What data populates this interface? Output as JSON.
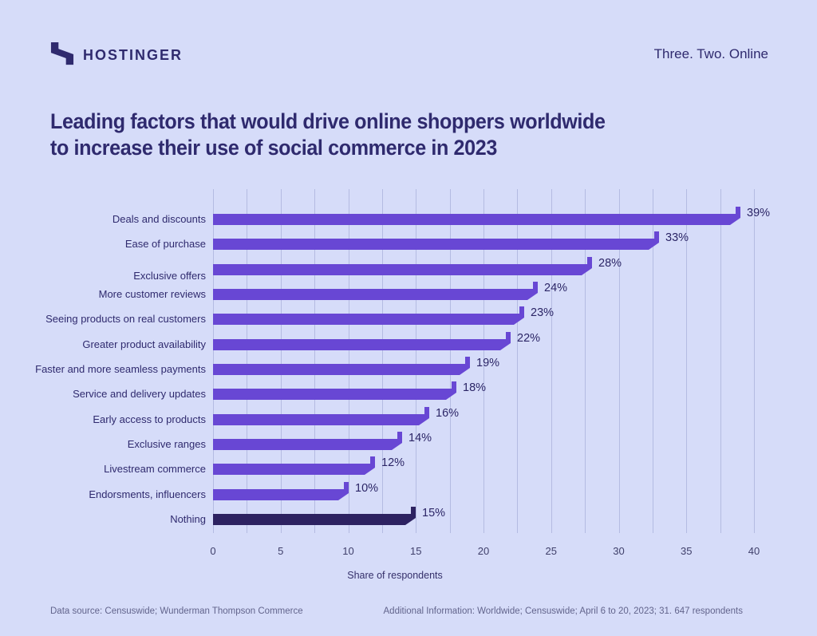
{
  "header": {
    "brand": "HOSTINGER",
    "tagline": "Three. Two. Online"
  },
  "title": {
    "line1": "Leading factors that would drive online shoppers worldwide",
    "line2": "to increase their use of social commerce in 2023"
  },
  "chart_data": {
    "type": "bar",
    "orientation": "horizontal",
    "title": "Leading factors that would drive online shoppers worldwide to increase their use of social commerce in 2023",
    "categories": [
      "Deals and discounts",
      "Ease of purchase",
      "Exclusive offers",
      "More customer reviews",
      "Seeing products on real customers",
      "Greater product availability",
      "Faster and more seamless payments",
      "Service and delivery updates",
      "Early access to products",
      "Exclusive ranges",
      "Livestream commerce",
      "Endorsments, influencers",
      "Nothing"
    ],
    "values": [
      39,
      33,
      28,
      24,
      23,
      22,
      19,
      18,
      16,
      14,
      12,
      10,
      15
    ],
    "value_labels": [
      "39%",
      "33%",
      "28%",
      "24%",
      "23%",
      "22%",
      "19%",
      "18%",
      "16%",
      "14%",
      "12%",
      "10%",
      "15%"
    ],
    "highlight_index": 12,
    "xlabel": "Share of respondents",
    "xlim": [
      0,
      40
    ],
    "xticks": [
      0,
      5,
      10,
      15,
      20,
      25,
      30,
      35,
      40
    ],
    "minor_grid_step": 2.5,
    "grid": true,
    "legend": false,
    "bar_color": "#6847d4",
    "highlight_color": "#2d2261"
  },
  "footer": {
    "source": "Data source: Censuswide; Wunderman Thompson Commerce",
    "additional": "Additional Information: Worldwide; Censuswide; April 6 to 20, 2023; 31. 647 respondents"
  },
  "colors": {
    "background": "#d6dcf9",
    "text": "#2f2a6e",
    "muted_text": "#62648c",
    "gridline": "rgba(104,114,173,0.30)"
  }
}
